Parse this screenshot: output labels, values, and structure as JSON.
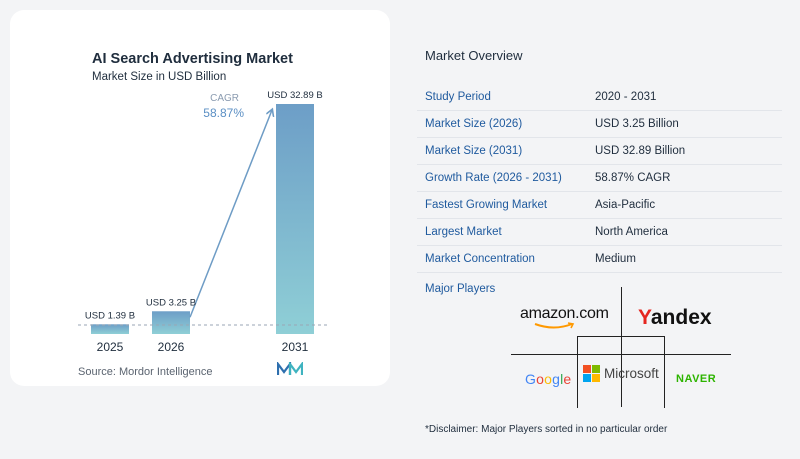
{
  "chart_data": {
    "type": "bar",
    "title": "AI Search Advertising Market",
    "subtitle": "Market Size in USD Billion",
    "categories": [
      "2025",
      "2026",
      "2031"
    ],
    "values": [
      1.39,
      3.25,
      32.89
    ],
    "data_labels": [
      "USD 1.39 B",
      "USD 3.25 B",
      "USD 32.89 B"
    ],
    "cagr_label": "CAGR",
    "cagr_value": "58.87%",
    "ylim": [
      0,
      32.89
    ],
    "grid": false,
    "colors": {
      "bar_top": "#6d9ec7",
      "bar_bottom": "#8fcfd6",
      "arrow": "#6e9cc5",
      "cagr_value": "#5b8fc4",
      "cagr_label": "#8a9bb0"
    }
  },
  "source": "Source:  Mordor Intelligence",
  "logo_icon": "mordor-intelligence-logo-icon",
  "overview": {
    "title": "Market Overview",
    "rows": [
      {
        "label": "Study Period",
        "value": "2020 - 2031"
      },
      {
        "label": "Market Size (2026)",
        "value": "USD 3.25 Billion"
      },
      {
        "label": "Market Size (2031)",
        "value": "USD 32.89 Billion"
      },
      {
        "label": "Growth Rate (2026 - 2031)",
        "value": "58.87% CAGR"
      },
      {
        "label": "Fastest Growing Market",
        "value": "Asia-Pacific"
      },
      {
        "label": "Largest Market",
        "value": "North America"
      },
      {
        "label": "Market Concentration",
        "value": "Medium"
      }
    ]
  },
  "players": {
    "label": "Major Players",
    "amazon": "amazon.com",
    "yandex_y": "Y",
    "yandex_rest": "andex",
    "google": "Google",
    "microsoft": "Microsoft",
    "naver": "NAVER"
  },
  "disclaimer": "*Disclaimer: Major Players sorted in no particular order"
}
